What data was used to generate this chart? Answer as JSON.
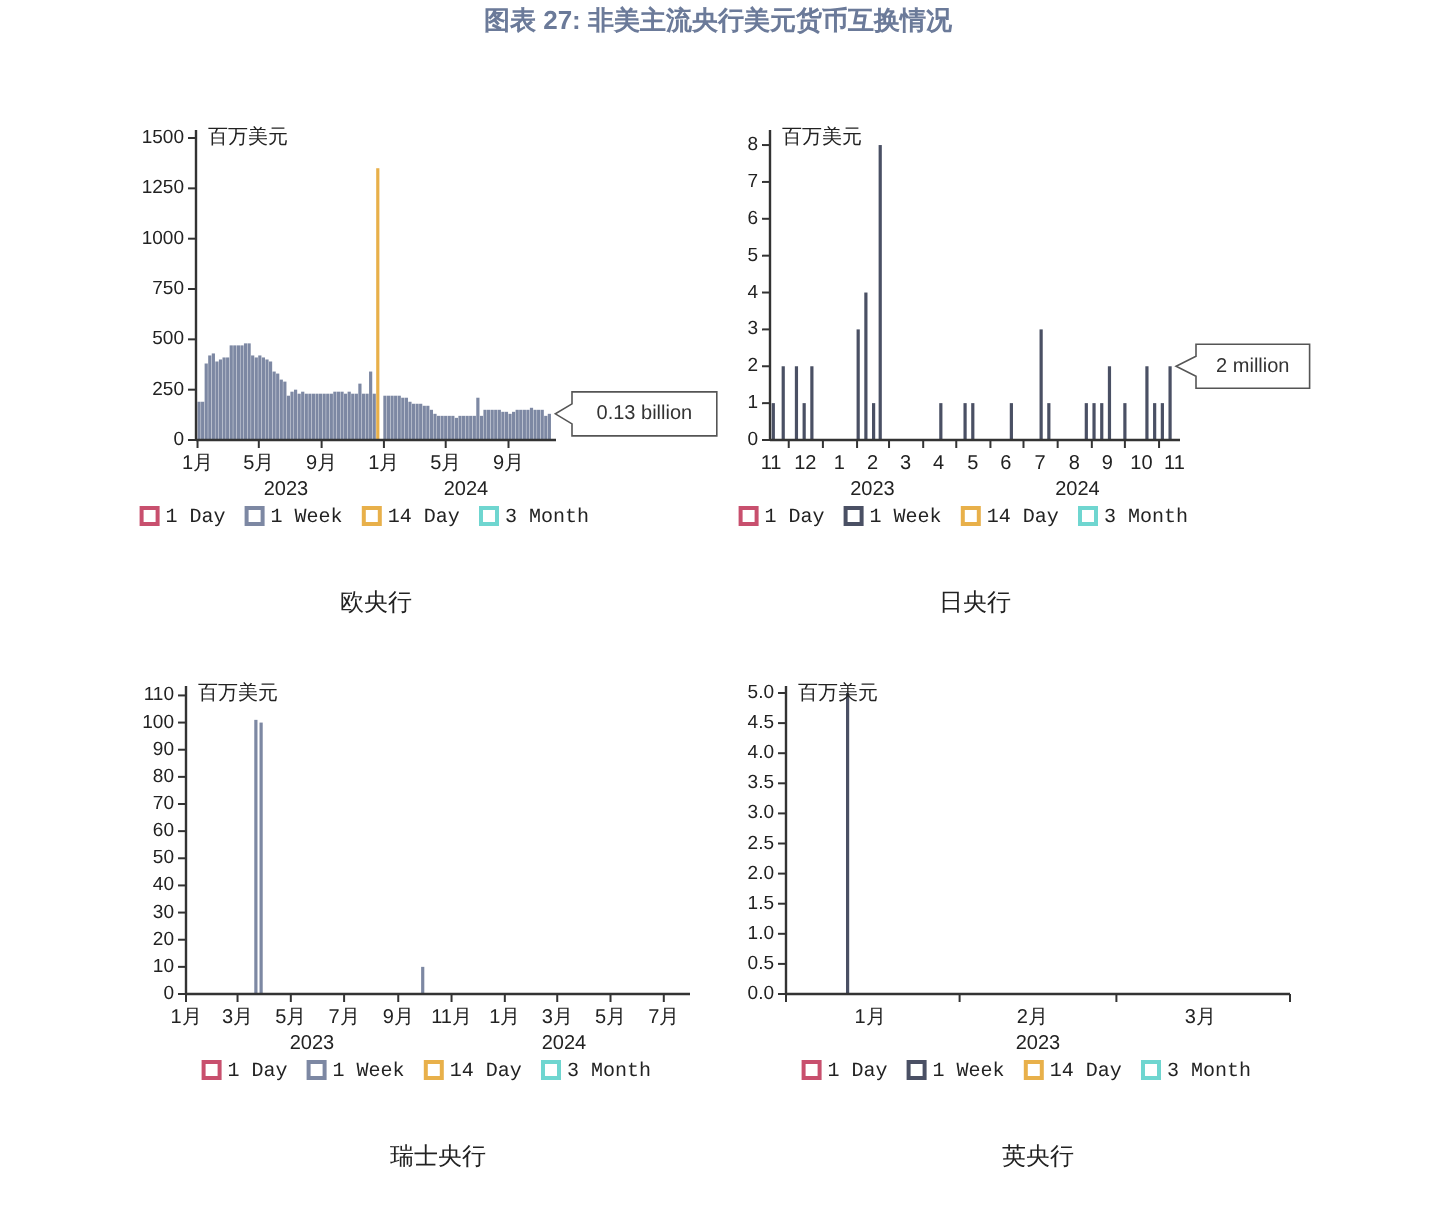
{
  "chart_data": [
    {
      "type": "bar",
      "title": "图表 27: 非美主流央行美元货币互换情况",
      "xlabel": "欧央行",
      "ylabel": "百万美元",
      "legend": "bottom",
      "annotations": [
        {
          "text": "0.13 billion",
          "x": "2024-11-20",
          "y": 130
        },
        "2023",
        "2024"
      ],
      "xlim": [
        "2022-12-29",
        "2024-12-03"
      ],
      "ylim": [
        0,
        1520
      ],
      "xticks": [
        {
          "value": "2023-01-01",
          "label": "1月"
        },
        {
          "value": "2023-05-01",
          "label": "5月"
        },
        {
          "value": "2023-09-01",
          "label": "9月"
        },
        {
          "value": "2024-01-01",
          "label": "1月"
        },
        {
          "value": "2024-05-01",
          "label": "5月"
        },
        {
          "value": "2024-09-01",
          "label": "9月"
        }
      ],
      "yticks": [
        0,
        250,
        500,
        750,
        1000,
        1250,
        1500
      ],
      "series": [
        {
          "name": "1 Day",
          "color": "#c8506e"
        },
        {
          "name": "1 Week",
          "color": "#7d88a3",
          "x": [
            "2023-01-04",
            "2023-01-11",
            "2023-01-18",
            "2023-01-25",
            "2023-02-01",
            "2023-02-08",
            "2023-02-15",
            "2023-02-22",
            "2023-03-01",
            "2023-03-08",
            "2023-03-15",
            "2023-03-22",
            "2023-03-29",
            "2023-04-05",
            "2023-04-12",
            "2023-04-19",
            "2023-04-26",
            "2023-05-03",
            "2023-05-10",
            "2023-05-17",
            "2023-05-24",
            "2023-05-31",
            "2023-06-07",
            "2023-06-14",
            "2023-06-21",
            "2023-06-28",
            "2023-07-05",
            "2023-07-12",
            "2023-07-19",
            "2023-07-26",
            "2023-08-02",
            "2023-08-09",
            "2023-08-16",
            "2023-08-23",
            "2023-08-30",
            "2023-09-06",
            "2023-09-13",
            "2023-09-20",
            "2023-09-27",
            "2023-10-04",
            "2023-10-11",
            "2023-10-18",
            "2023-10-25",
            "2023-11-01",
            "2023-11-08",
            "2023-11-15",
            "2023-11-22",
            "2023-11-29",
            "2023-12-06",
            "2023-12-13",
            "2023-12-20",
            "2023-12-27",
            "2024-01-03",
            "2024-01-10",
            "2024-01-17",
            "2024-01-24",
            "2024-01-31",
            "2024-02-07",
            "2024-02-14",
            "2024-02-21",
            "2024-02-28",
            "2024-03-06",
            "2024-03-13",
            "2024-03-20",
            "2024-03-27",
            "2024-04-03",
            "2024-04-10",
            "2024-04-17",
            "2024-04-24",
            "2024-05-01",
            "2024-05-08",
            "2024-05-15",
            "2024-05-22",
            "2024-05-29",
            "2024-06-05",
            "2024-06-12",
            "2024-06-19",
            "2024-06-26",
            "2024-07-03",
            "2024-07-10",
            "2024-07-17",
            "2024-07-24",
            "2024-07-31",
            "2024-08-07",
            "2024-08-14",
            "2024-08-21",
            "2024-08-28",
            "2024-09-04",
            "2024-09-11",
            "2024-09-18",
            "2024-09-25",
            "2024-10-02",
            "2024-10-09",
            "2024-10-16",
            "2024-10-23",
            "2024-10-30",
            "2024-11-06",
            "2024-11-13",
            "2024-11-20"
          ],
          "values": [
            190,
            190,
            380,
            420,
            430,
            390,
            400,
            410,
            410,
            470,
            470,
            470,
            470,
            480,
            480,
            420,
            410,
            420,
            410,
            400,
            390,
            340,
            330,
            300,
            290,
            220,
            240,
            250,
            230,
            240,
            230,
            230,
            230,
            230,
            230,
            230,
            230,
            230,
            240,
            240,
            240,
            230,
            240,
            230,
            230,
            280,
            230,
            230,
            340,
            230,
            null,
            null,
            220,
            220,
            220,
            220,
            220,
            210,
            210,
            190,
            180,
            180,
            180,
            170,
            170,
            150,
            130,
            120,
            120,
            120,
            120,
            120,
            110,
            120,
            120,
            120,
            120,
            120,
            210,
            120,
            150,
            150,
            150,
            150,
            150,
            140,
            140,
            130,
            140,
            150,
            150,
            150,
            150,
            160,
            150,
            150,
            150,
            120,
            130
          ]
        },
        {
          "name": "14 Day",
          "color": "#e8b04a",
          "x": [
            "2023-12-20"
          ],
          "values": [
            1350
          ]
        },
        {
          "name": "3 Month",
          "color": "#6fd6d0"
        }
      ]
    },
    {
      "type": "bar",
      "xlabel": "日央行",
      "ylabel": "百万美元",
      "legend": "bottom",
      "annotations": [
        {
          "text": "2 million",
          "x": "2024-11-11",
          "y": 2
        },
        "2023",
        "2024"
      ],
      "xlim": [
        "2023-11-14",
        "2024-11-20"
      ],
      "ylim": [
        0,
        8.3
      ],
      "xticks": [
        {
          "value": "2023-11-15",
          "label": "11"
        },
        {
          "value": "2023-12-16",
          "label": "12"
        },
        {
          "value": "2024-01-16",
          "label": "1"
        },
        {
          "value": "2024-02-15",
          "label": "2"
        },
        {
          "value": "2024-03-16",
          "label": "3"
        },
        {
          "value": "2024-04-15",
          "label": "4"
        },
        {
          "value": "2024-05-16",
          "label": "5"
        },
        {
          "value": "2024-06-15",
          "label": "6"
        },
        {
          "value": "2024-07-16",
          "label": "7"
        },
        {
          "value": "2024-08-16",
          "label": "8"
        },
        {
          "value": "2024-09-15",
          "label": "9"
        },
        {
          "value": "2024-10-16",
          "label": "10"
        },
        {
          "value": "2024-11-15",
          "label": "11"
        },
        {
          "value": "2023-12-01",
          "label": null
        },
        {
          "value": "2024-01-01",
          "label": null
        },
        {
          "value": "2024-02-01",
          "label": null
        },
        {
          "value": "2024-03-01",
          "label": null
        },
        {
          "value": "2024-04-01",
          "label": null
        },
        {
          "value": "2024-05-01",
          "label": null
        },
        {
          "value": "2024-06-01",
          "label": null
        },
        {
          "value": "2024-07-01",
          "label": null
        },
        {
          "value": "2024-08-01",
          "label": null
        },
        {
          "value": "2024-09-01",
          "label": null
        },
        {
          "value": "2024-10-01",
          "label": null
        },
        {
          "value": "2024-11-01",
          "label": null
        }
      ],
      "yticks": [
        0,
        1,
        2,
        3,
        4,
        5,
        6,
        7,
        8
      ],
      "series": [
        {
          "name": "1 Day",
          "color": "#c8506e"
        },
        {
          "name": "1 Week",
          "color": "#4a5064",
          "x": [
            "2023-11-17",
            "2023-11-26",
            "2023-12-08",
            "2023-12-15",
            "2023-12-22",
            "2024-02-02",
            "2024-02-09",
            "2024-02-16",
            "2024-02-22",
            "2024-04-17",
            "2024-05-09",
            "2024-05-16",
            "2024-06-20",
            "2024-07-17",
            "2024-07-24",
            "2024-08-27",
            "2024-09-03",
            "2024-09-10",
            "2024-09-17",
            "2024-10-01",
            "2024-10-21",
            "2024-10-28",
            "2024-11-04",
            "2024-11-11"
          ],
          "values": [
            1,
            2,
            2,
            1,
            2,
            3,
            4,
            1,
            8,
            1,
            1,
            1,
            1,
            3,
            1,
            1,
            1,
            1,
            2,
            1,
            2,
            1,
            1,
            2
          ]
        },
        {
          "name": "14 Day",
          "color": "#e8b04a"
        },
        {
          "name": "3 Month",
          "color": "#6fd6d0"
        }
      ]
    },
    {
      "type": "bar",
      "xlabel": "瑞士央行",
      "ylabel": "百万美元",
      "legend": "bottom",
      "annotations": [
        "2023",
        "2024"
      ],
      "xlim": [
        "2023-01-01",
        "2024-07-31"
      ],
      "ylim": [
        0,
        112
      ],
      "xticks": [
        {
          "value": "2023-01-01",
          "label": "1月"
        },
        {
          "value": "2023-03-01",
          "label": "3月"
        },
        {
          "value": "2023-05-01",
          "label": "5月"
        },
        {
          "value": "2023-07-01",
          "label": "7月"
        },
        {
          "value": "2023-09-01",
          "label": "9月"
        },
        {
          "value": "2023-11-01",
          "label": "11月"
        },
        {
          "value": "2024-01-01",
          "label": "1月"
        },
        {
          "value": "2024-03-01",
          "label": "3月"
        },
        {
          "value": "2024-05-01",
          "label": "5月"
        },
        {
          "value": "2024-07-01",
          "label": "7月"
        }
      ],
      "yticks": [
        0,
        10,
        20,
        30,
        40,
        50,
        60,
        70,
        80,
        90,
        100,
        110
      ],
      "series": [
        {
          "name": "1 Day",
          "color": "#c8506e"
        },
        {
          "name": "1 Week",
          "color": "#7d88a3",
          "x": [
            "2023-03-22",
            "2023-03-28",
            "2023-09-29"
          ],
          "values": [
            101,
            100,
            10
          ]
        },
        {
          "name": "14 Day",
          "color": "#e8b04a"
        },
        {
          "name": "3 Month",
          "color": "#6fd6d0"
        }
      ]
    },
    {
      "type": "bar",
      "xlabel": "英央行",
      "ylabel": "百万美元",
      "legend": "bottom",
      "annotations": [
        "2023"
      ],
      "xlim": [
        "2023-01-01",
        "2023-04-01"
      ],
      "ylim": [
        0,
        5.05
      ],
      "xticks": [
        {
          "value": "2023-01-16",
          "label": "1月"
        },
        {
          "value": "2023-02-14",
          "label": "2月"
        },
        {
          "value": "2023-03-16",
          "label": "3月"
        },
        {
          "value": "2023-01-01",
          "label": null
        },
        {
          "value": "2023-02-01",
          "label": null
        },
        {
          "value": "2023-03-01",
          "label": null
        },
        {
          "value": "2023-04-01",
          "label": null
        }
      ],
      "yticks": [
        {
          "value": 0,
          "label": "0.0"
        },
        {
          "value": 0.5,
          "label": "0.5"
        },
        {
          "value": 1,
          "label": "1.0"
        },
        {
          "value": 1.5,
          "label": "1.5"
        },
        {
          "value": 2,
          "label": "2.0"
        },
        {
          "value": 2.5,
          "label": "2.5"
        },
        {
          "value": 3,
          "label": "3.0"
        },
        {
          "value": 3.5,
          "label": "3.5"
        },
        {
          "value": 4,
          "label": "4.0"
        },
        {
          "value": 4.5,
          "label": "4.5"
        },
        {
          "value": 5,
          "label": "5.0"
        }
      ],
      "series": [
        {
          "name": "1 Day",
          "color": "#c8506e"
        },
        {
          "name": "1 Week",
          "color": "#4a5064",
          "x": [
            "2023-01-12"
          ],
          "values": [
            5
          ]
        },
        {
          "name": "14 Day",
          "color": "#e8b04a"
        },
        {
          "name": "3 Month",
          "color": "#6fd6d0"
        }
      ]
    }
  ]
}
